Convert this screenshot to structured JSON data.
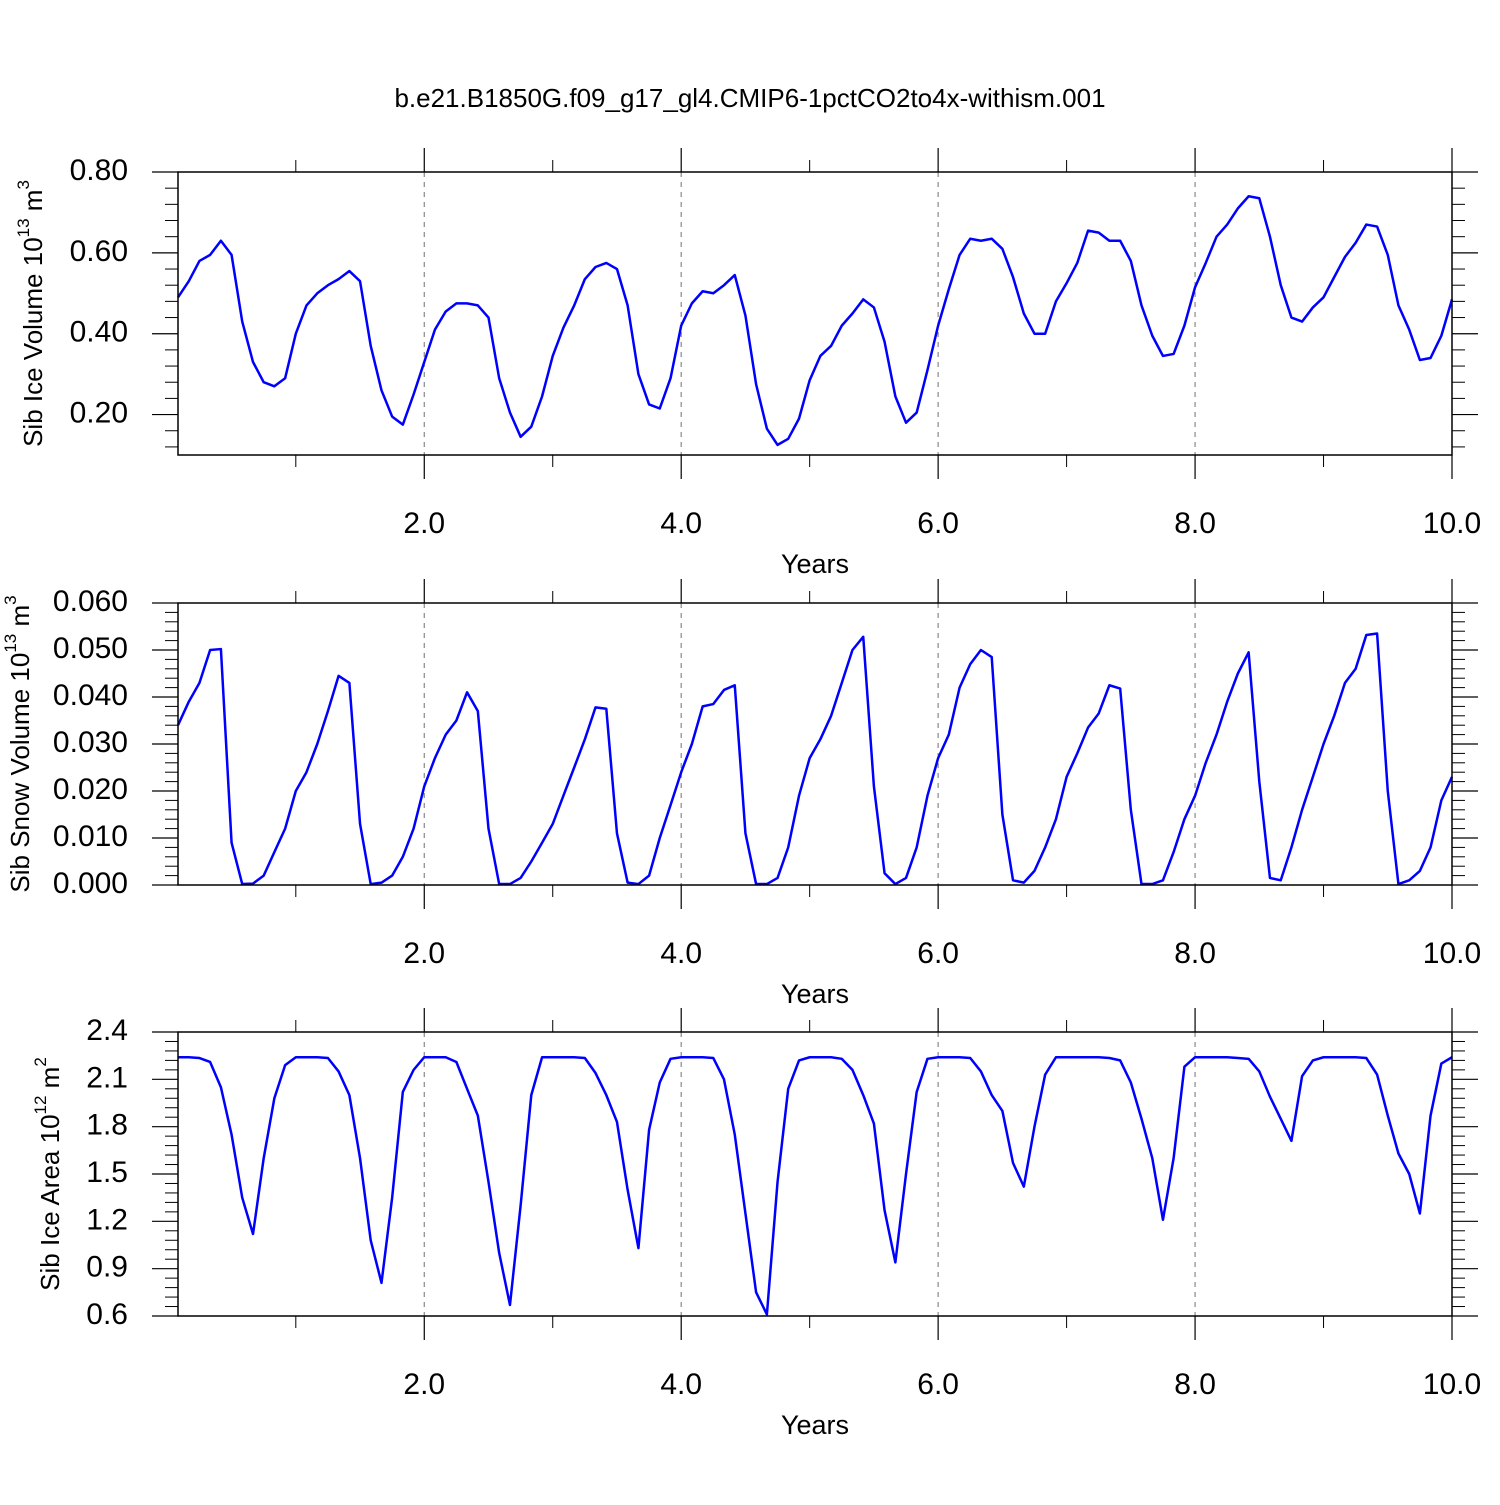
{
  "chart_data": [
    {
      "type": "line",
      "title": "b.e21.B1850G.f09_g17_gl4.CMIP6-1pctCO2to4x-withism.001",
      "y_label": [
        "Sib Ice Volume 10",
        "13",
        " m",
        "3"
      ],
      "x_label": "Years",
      "xlim": [
        0.083,
        10
      ],
      "xticks": [
        {
          "value": 2,
          "label": "2.0"
        },
        {
          "value": 4,
          "label": "4.0"
        },
        {
          "value": 6,
          "label": "6.0"
        },
        {
          "value": 8,
          "label": "8.0"
        },
        {
          "value": 10,
          "label": "10.0"
        }
      ],
      "ylim": [
        0.1,
        0.8
      ],
      "yticks": [
        {
          "value": 0.2,
          "label": "0.20"
        },
        {
          "value": 0.4,
          "label": "0.40"
        },
        {
          "value": 0.6,
          "label": "0.60"
        },
        {
          "value": 0.8,
          "label": "0.80"
        }
      ],
      "grid": true,
      "color": "#0000ff",
      "x": [
        0.083,
        0.167,
        0.25,
        0.333,
        0.417,
        0.5,
        0.583,
        0.667,
        0.75,
        0.833,
        0.917,
        1,
        1.083,
        1.167,
        1.25,
        1.333,
        1.417,
        1.5,
        1.583,
        1.667,
        1.75,
        1.833,
        1.917,
        2,
        2.083,
        2.167,
        2.25,
        2.333,
        2.417,
        2.5,
        2.583,
        2.667,
        2.75,
        2.833,
        2.917,
        3,
        3.083,
        3.167,
        3.25,
        3.333,
        3.417,
        3.5,
        3.583,
        3.667,
        3.75,
        3.833,
        3.917,
        4,
        4.083,
        4.167,
        4.25,
        4.333,
        4.417,
        4.5,
        4.583,
        4.667,
        4.75,
        4.833,
        4.917,
        5,
        5.083,
        5.167,
        5.25,
        5.333,
        5.417,
        5.5,
        5.583,
        5.667,
        5.75,
        5.833,
        5.917,
        6,
        6.083,
        6.167,
        6.25,
        6.333,
        6.417,
        6.5,
        6.583,
        6.667,
        6.75,
        6.833,
        6.917,
        7,
        7.083,
        7.167,
        7.25,
        7.333,
        7.417,
        7.5,
        7.583,
        7.667,
        7.75,
        7.833,
        7.917,
        8,
        8.083,
        8.167,
        8.25,
        8.333,
        8.417,
        8.5,
        8.583,
        8.667,
        8.75,
        8.833,
        8.917,
        9,
        9.083,
        9.167,
        9.25,
        9.333,
        9.417,
        9.5,
        9.583,
        9.667,
        9.75,
        9.833,
        9.917,
        10
      ],
      "values": [
        0.49,
        0.53,
        0.58,
        0.595,
        0.63,
        0.595,
        0.43,
        0.33,
        0.28,
        0.27,
        0.29,
        0.4,
        0.47,
        0.5,
        0.52,
        0.535,
        0.555,
        0.53,
        0.37,
        0.26,
        0.195,
        0.175,
        0.25,
        0.33,
        0.41,
        0.455,
        0.475,
        0.475,
        0.47,
        0.44,
        0.29,
        0.205,
        0.145,
        0.17,
        0.245,
        0.345,
        0.415,
        0.47,
        0.535,
        0.565,
        0.575,
        0.56,
        0.47,
        0.3,
        0.225,
        0.215,
        0.29,
        0.42,
        0.475,
        0.505,
        0.5,
        0.52,
        0.545,
        0.445,
        0.275,
        0.165,
        0.125,
        0.14,
        0.19,
        0.285,
        0.345,
        0.37,
        0.42,
        0.45,
        0.485,
        0.465,
        0.38,
        0.245,
        0.18,
        0.205,
        0.31,
        0.42,
        0.51,
        0.595,
        0.635,
        0.63,
        0.635,
        0.61,
        0.54,
        0.45,
        0.4,
        0.4,
        0.48,
        0.525,
        0.575,
        0.655,
        0.65,
        0.63,
        0.63,
        0.58,
        0.47,
        0.395,
        0.345,
        0.35,
        0.42,
        0.515,
        0.575,
        0.64,
        0.67,
        0.71,
        0.74,
        0.735,
        0.64,
        0.52,
        0.44,
        0.43,
        0.465,
        0.49,
        0.54,
        0.59,
        0.625,
        0.67,
        0.665,
        0.595,
        0.47,
        0.41,
        0.335,
        0.34,
        0.395,
        0.485
      ]
    },
    {
      "type": "line",
      "y_label": [
        "Sib Snow Volume 10",
        "13",
        " m",
        "3"
      ],
      "x_label": "Years",
      "xlim": [
        0.083,
        10
      ],
      "xticks": [
        {
          "value": 2,
          "label": "2.0"
        },
        {
          "value": 4,
          "label": "4.0"
        },
        {
          "value": 6,
          "label": "6.0"
        },
        {
          "value": 8,
          "label": "8.0"
        },
        {
          "value": 10,
          "label": "10.0"
        }
      ],
      "ylim": [
        0,
        0.06
      ],
      "yticks": [
        {
          "value": 0,
          "label": "0.000"
        },
        {
          "value": 0.01,
          "label": "0.010"
        },
        {
          "value": 0.02,
          "label": "0.020"
        },
        {
          "value": 0.03,
          "label": "0.030"
        },
        {
          "value": 0.04,
          "label": "0.040"
        },
        {
          "value": 0.05,
          "label": "0.050"
        },
        {
          "value": 0.06,
          "label": "0.060"
        }
      ],
      "grid": true,
      "color": "#0000ff",
      "x": [
        0.083,
        0.167,
        0.25,
        0.333,
        0.417,
        0.5,
        0.583,
        0.667,
        0.75,
        0.833,
        0.917,
        1,
        1.083,
        1.167,
        1.25,
        1.333,
        1.417,
        1.5,
        1.583,
        1.667,
        1.75,
        1.833,
        1.917,
        2,
        2.083,
        2.167,
        2.25,
        2.333,
        2.417,
        2.5,
        2.583,
        2.667,
        2.75,
        2.833,
        2.917,
        3,
        3.083,
        3.167,
        3.25,
        3.333,
        3.417,
        3.5,
        3.583,
        3.667,
        3.75,
        3.833,
        3.917,
        4,
        4.083,
        4.167,
        4.25,
        4.333,
        4.417,
        4.5,
        4.583,
        4.667,
        4.75,
        4.833,
        4.917,
        5,
        5.083,
        5.167,
        5.25,
        5.333,
        5.417,
        5.5,
        5.583,
        5.667,
        5.75,
        5.833,
        5.917,
        6,
        6.083,
        6.167,
        6.25,
        6.333,
        6.417,
        6.5,
        6.583,
        6.667,
        6.75,
        6.833,
        6.917,
        7,
        7.083,
        7.167,
        7.25,
        7.333,
        7.417,
        7.5,
        7.583,
        7.667,
        7.75,
        7.833,
        7.917,
        8,
        8.083,
        8.167,
        8.25,
        8.333,
        8.417,
        8.5,
        8.583,
        8.667,
        8.75,
        8.833,
        8.917,
        9,
        9.083,
        9.167,
        9.25,
        9.333,
        9.417,
        9.5,
        9.583,
        9.667,
        9.75,
        9.833,
        9.917,
        10
      ],
      "values": [
        0.034,
        0.039,
        0.043,
        0.05,
        0.0502,
        0.009,
        0.0002,
        0.0003,
        0.002,
        0.007,
        0.012,
        0.02,
        0.024,
        0.03,
        0.037,
        0.0445,
        0.043,
        0.013,
        0.0002,
        0.0005,
        0.002,
        0.006,
        0.012,
        0.021,
        0.027,
        0.032,
        0.035,
        0.041,
        0.037,
        0.012,
        0.0002,
        0.0002,
        0.0015,
        0.005,
        0.009,
        0.013,
        0.019,
        0.025,
        0.031,
        0.0378,
        0.0375,
        0.011,
        0.0005,
        0.0002,
        0.002,
        0.01,
        0.017,
        0.024,
        0.03,
        0.038,
        0.0385,
        0.0415,
        0.0425,
        0.011,
        0.0002,
        0.0002,
        0.0015,
        0.008,
        0.019,
        0.027,
        0.031,
        0.036,
        0.043,
        0.05,
        0.0528,
        0.021,
        0.0025,
        0.0002,
        0.0015,
        0.008,
        0.019,
        0.027,
        0.032,
        0.042,
        0.047,
        0.05,
        0.0485,
        0.015,
        0.001,
        0.0005,
        0.003,
        0.008,
        0.014,
        0.023,
        0.028,
        0.0335,
        0.0365,
        0.0425,
        0.0418,
        0.016,
        0.0002,
        0.0002,
        0.001,
        0.007,
        0.014,
        0.019,
        0.026,
        0.032,
        0.039,
        0.045,
        0.0495,
        0.022,
        0.0015,
        0.001,
        0.008,
        0.016,
        0.023,
        0.03,
        0.036,
        0.043,
        0.046,
        0.0532,
        0.0535,
        0.02,
        0.0002,
        0.001,
        0.003,
        0.008,
        0.018,
        0.023
      ]
    },
    {
      "type": "line",
      "y_label": [
        "Sib Ice Area 10",
        "12",
        " m",
        "2"
      ],
      "x_label": "Years",
      "xlim": [
        0.083,
        10
      ],
      "xticks": [
        {
          "value": 2,
          "label": "2.0"
        },
        {
          "value": 4,
          "label": "4.0"
        },
        {
          "value": 6,
          "label": "6.0"
        },
        {
          "value": 8,
          "label": "8.0"
        },
        {
          "value": 10,
          "label": "10.0"
        }
      ],
      "ylim": [
        0.6,
        2.4
      ],
      "yticks": [
        0.6,
        0.9,
        1.2,
        1.5,
        1.8,
        2.1,
        2.4
      ],
      "grid": true,
      "color": "#0000ff",
      "x": [
        0.083,
        0.167,
        0.25,
        0.333,
        0.417,
        0.5,
        0.583,
        0.667,
        0.75,
        0.833,
        0.917,
        1,
        1.083,
        1.167,
        1.25,
        1.333,
        1.417,
        1.5,
        1.583,
        1.667,
        1.75,
        1.833,
        1.917,
        2,
        2.083,
        2.167,
        2.25,
        2.333,
        2.417,
        2.5,
        2.583,
        2.667,
        2.75,
        2.833,
        2.917,
        3,
        3.083,
        3.167,
        3.25,
        3.333,
        3.417,
        3.5,
        3.583,
        3.667,
        3.75,
        3.833,
        3.917,
        4,
        4.083,
        4.167,
        4.25,
        4.333,
        4.417,
        4.5,
        4.583,
        4.667,
        4.75,
        4.833,
        4.917,
        5,
        5.083,
        5.167,
        5.25,
        5.333,
        5.417,
        5.5,
        5.583,
        5.667,
        5.75,
        5.833,
        5.917,
        6,
        6.083,
        6.167,
        6.25,
        6.333,
        6.417,
        6.5,
        6.583,
        6.667,
        6.75,
        6.833,
        6.917,
        7,
        7.083,
        7.167,
        7.25,
        7.333,
        7.417,
        7.5,
        7.583,
        7.667,
        7.75,
        7.833,
        7.917,
        8,
        8.083,
        8.167,
        8.25,
        8.333,
        8.417,
        8.5,
        8.583,
        8.667,
        8.75,
        8.833,
        8.917,
        9,
        9.083,
        9.167,
        9.25,
        9.333,
        9.417,
        9.5,
        9.583,
        9.667,
        9.75,
        9.833,
        9.917,
        10
      ],
      "values": [
        2.24,
        2.24,
        2.235,
        2.21,
        2.05,
        1.75,
        1.35,
        1.12,
        1.6,
        1.98,
        2.19,
        2.24,
        2.24,
        2.24,
        2.235,
        2.15,
        2.0,
        1.6,
        1.08,
        0.81,
        1.35,
        2.02,
        2.16,
        2.24,
        2.24,
        2.24,
        2.21,
        2.04,
        1.87,
        1.45,
        1.0,
        0.67,
        1.3,
        2.0,
        2.24,
        2.24,
        2.24,
        2.24,
        2.235,
        2.14,
        2.0,
        1.83,
        1.4,
        1.03,
        1.78,
        2.08,
        2.23,
        2.24,
        2.24,
        2.24,
        2.235,
        2.1,
        1.75,
        1.25,
        0.75,
        0.61,
        1.45,
        2.04,
        2.22,
        2.24,
        2.24,
        2.24,
        2.23,
        2.16,
        2.0,
        1.82,
        1.27,
        0.94,
        1.5,
        2.02,
        2.23,
        2.24,
        2.24,
        2.24,
        2.235,
        2.15,
        2.0,
        1.9,
        1.57,
        1.42,
        1.8,
        2.13,
        2.24,
        2.24,
        2.24,
        2.24,
        2.24,
        2.235,
        2.22,
        2.08,
        1.85,
        1.6,
        1.21,
        1.6,
        2.18,
        2.24,
        2.24,
        2.24,
        2.24,
        2.235,
        2.23,
        2.15,
        1.99,
        1.85,
        1.71,
        2.12,
        2.22,
        2.24,
        2.24,
        2.24,
        2.24,
        2.235,
        2.13,
        1.87,
        1.63,
        1.5,
        1.25,
        1.87,
        2.2,
        2.24
      ]
    }
  ]
}
